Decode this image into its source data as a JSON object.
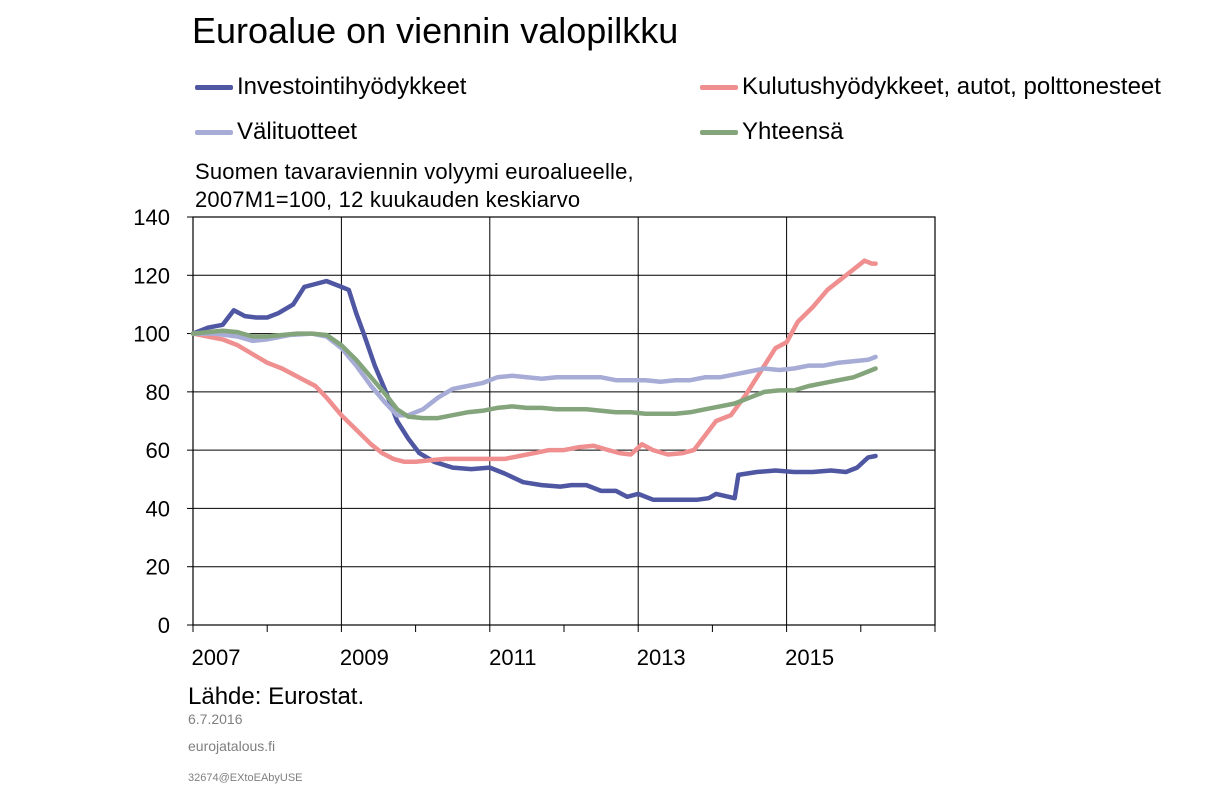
{
  "header": {
    "title": "Euroalue on viennin valopilkku",
    "subtitle_line1": "Suomen tavaraviennin volyymi euroalueelle,",
    "subtitle_line2": "2007M1=100, 12 kuukauden keskiarvo"
  },
  "footer": {
    "source": "Lähde: Eurostat.",
    "date": "6.7.2016",
    "site": "eurojatalous.fi",
    "code": "32674@EXtoEAbyUSE"
  },
  "chart_data": {
    "type": "line",
    "title": "Euroalue on viennin valopilkku",
    "ylim": [
      0,
      140
    ],
    "yticks": [
      0,
      20,
      40,
      60,
      80,
      100,
      120,
      140
    ],
    "xlim": [
      2007.0,
      2017.0
    ],
    "xtick_labels": [
      "2007",
      "2009",
      "2011",
      "2013",
      "2015"
    ],
    "xtick_label_positions": [
      2007.0,
      2009.0,
      2011.0,
      2013.0,
      2015.0
    ],
    "x_minor_ticks": [
      2007,
      2008,
      2009,
      2010,
      2011,
      2012,
      2013,
      2014,
      2015,
      2016,
      2017
    ],
    "grid": "vertical lines at odd years, horizontal lines at y ticks",
    "legend_placement": "top",
    "series": [
      {
        "name": "Investointihyödykkeet",
        "color": "#4f57a3",
        "x": [
          2007.0,
          2007.2,
          2007.4,
          2007.55,
          2007.7,
          2007.85,
          2008.0,
          2008.15,
          2008.35,
          2008.5,
          2008.65,
          2008.8,
          2008.9,
          2009.0,
          2009.1,
          2009.2,
          2009.3,
          2009.45,
          2009.6,
          2009.75,
          2009.9,
          2010.05,
          2010.25,
          2010.5,
          2010.75,
          2011.0,
          2011.2,
          2011.45,
          2011.7,
          2011.95,
          2012.1,
          2012.3,
          2012.5,
          2012.7,
          2012.85,
          2013.0,
          2013.2,
          2013.4,
          2013.6,
          2013.8,
          2013.95,
          2014.05,
          2014.3,
          2014.35,
          2014.6,
          2014.85,
          2015.1,
          2015.35,
          2015.6,
          2015.8,
          2015.95,
          2016.1,
          2016.2
        ],
        "values": [
          100,
          102,
          103,
          108,
          106,
          105.5,
          105.5,
          107,
          110,
          116,
          117,
          118,
          117,
          116,
          115,
          107,
          100,
          89,
          80,
          70,
          64,
          59,
          56,
          54,
          53.5,
          54,
          52,
          49,
          48,
          47.5,
          48,
          48,
          46,
          46,
          44,
          45,
          43,
          43,
          43,
          43,
          43.5,
          45,
          43.5,
          51.5,
          52.5,
          53,
          52.5,
          52.5,
          53,
          52.5,
          54,
          57.5,
          58
        ]
      },
      {
        "name": "Kulutushyödykkeet, autot, polttonesteet",
        "color": "#ef8f8f",
        "x": [
          2007.0,
          2007.2,
          2007.4,
          2007.6,
          2007.8,
          2008.0,
          2008.2,
          2008.35,
          2008.5,
          2008.65,
          2008.8,
          2009.0,
          2009.2,
          2009.4,
          2009.55,
          2009.7,
          2009.85,
          2010.0,
          2010.2,
          2010.4,
          2010.6,
          2010.8,
          2011.0,
          2011.2,
          2011.4,
          2011.6,
          2011.8,
          2012.0,
          2012.2,
          2012.4,
          2012.6,
          2012.75,
          2012.9,
          2013.05,
          2013.2,
          2013.4,
          2013.6,
          2013.75,
          2013.9,
          2014.05,
          2014.25,
          2014.45,
          2014.65,
          2014.85,
          2015.0,
          2015.15,
          2015.35,
          2015.55,
          2015.75,
          2015.9,
          2016.05,
          2016.15,
          2016.2
        ],
        "values": [
          100,
          99,
          98,
          96,
          93,
          90,
          88,
          86,
          84,
          82,
          78,
          72,
          67,
          62,
          59,
          57,
          56,
          56,
          56.5,
          57,
          57,
          57,
          57,
          57,
          58,
          59,
          60,
          60,
          61,
          61.5,
          60,
          59,
          58.5,
          62,
          60,
          58.5,
          59,
          60,
          65,
          70,
          72,
          79,
          87,
          95,
          97,
          104,
          109,
          115,
          119,
          122,
          125,
          124,
          124
        ]
      },
      {
        "name": "Välituotteet",
        "color": "#a7acd6",
        "x": [
          2007.0,
          2007.3,
          2007.6,
          2007.8,
          2008.0,
          2008.3,
          2008.6,
          2008.8,
          2009.0,
          2009.2,
          2009.4,
          2009.6,
          2009.75,
          2009.9,
          2010.1,
          2010.3,
          2010.5,
          2010.7,
          2010.9,
          2011.1,
          2011.3,
          2011.5,
          2011.7,
          2011.9,
          2012.1,
          2012.3,
          2012.5,
          2012.7,
          2012.9,
          2013.1,
          2013.3,
          2013.5,
          2013.7,
          2013.9,
          2014.1,
          2014.3,
          2014.5,
          2014.7,
          2014.9,
          2015.1,
          2015.3,
          2015.5,
          2015.7,
          2015.9,
          2016.1,
          2016.2
        ],
        "values": [
          100,
          100,
          99,
          97.5,
          98,
          99.5,
          100,
          99,
          95,
          89,
          82,
          76,
          72,
          72,
          74,
          78,
          81,
          82,
          83,
          85,
          85.5,
          85,
          84.5,
          85,
          85,
          85,
          85,
          84,
          84,
          84,
          83.5,
          84,
          84,
          85,
          85,
          86,
          87,
          88,
          87.5,
          88,
          89,
          89,
          90,
          90.5,
          91,
          92
        ]
      },
      {
        "name": "Yhteensä",
        "color": "#84a57c",
        "x": [
          2007.0,
          2007.2,
          2007.4,
          2007.6,
          2007.8,
          2008.0,
          2008.2,
          2008.4,
          2008.6,
          2008.8,
          2009.0,
          2009.2,
          2009.4,
          2009.6,
          2009.75,
          2009.9,
          2010.1,
          2010.3,
          2010.5,
          2010.7,
          2010.9,
          2011.1,
          2011.3,
          2011.5,
          2011.7,
          2011.9,
          2012.1,
          2012.3,
          2012.5,
          2012.7,
          2012.9,
          2013.1,
          2013.3,
          2013.5,
          2013.7,
          2013.9,
          2014.1,
          2014.3,
          2014.5,
          2014.7,
          2014.9,
          2015.1,
          2015.3,
          2015.5,
          2015.7,
          2015.9,
          2016.1,
          2016.2
        ],
        "values": [
          100,
          100.5,
          101,
          100.5,
          99,
          99,
          99.5,
          100,
          100,
          99.5,
          96,
          91,
          85,
          79,
          74,
          71.5,
          71,
          71,
          72,
          73,
          73.5,
          74.5,
          75,
          74.5,
          74.5,
          74,
          74,
          74,
          73.5,
          73,
          73,
          72.5,
          72.5,
          72.5,
          73,
          74,
          75,
          76,
          78,
          80,
          80.5,
          80.5,
          82,
          83,
          84,
          85,
          87,
          88
        ]
      }
    ]
  }
}
